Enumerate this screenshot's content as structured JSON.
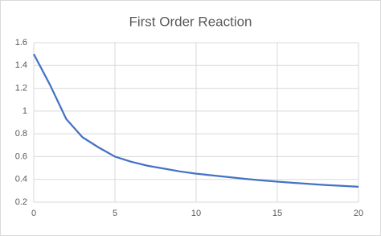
{
  "chart_data": {
    "type": "line",
    "title": "First Order Reaction",
    "x": [
      0,
      1,
      2,
      3,
      4,
      5,
      6,
      7,
      8,
      9,
      10,
      11,
      12,
      13,
      14,
      15,
      16,
      17,
      18,
      19,
      20
    ],
    "series": [
      {
        "color": "#4472c4",
        "values": [
          1.5,
          1.23,
          0.93,
          0.77,
          0.68,
          0.6,
          0.555,
          0.52,
          0.495,
          0.47,
          0.45,
          0.435,
          0.42,
          0.405,
          0.392,
          0.38,
          0.37,
          0.36,
          0.35,
          0.343,
          0.335
        ]
      }
    ],
    "xlim": [
      0,
      20
    ],
    "xticks": [
      0,
      5,
      10,
      15,
      20
    ],
    "ylim": [
      0.2,
      1.6
    ],
    "yticks": [
      0.2,
      0.4,
      0.6,
      0.8,
      1,
      1.2,
      1.4,
      1.6
    ],
    "grid": true
  }
}
